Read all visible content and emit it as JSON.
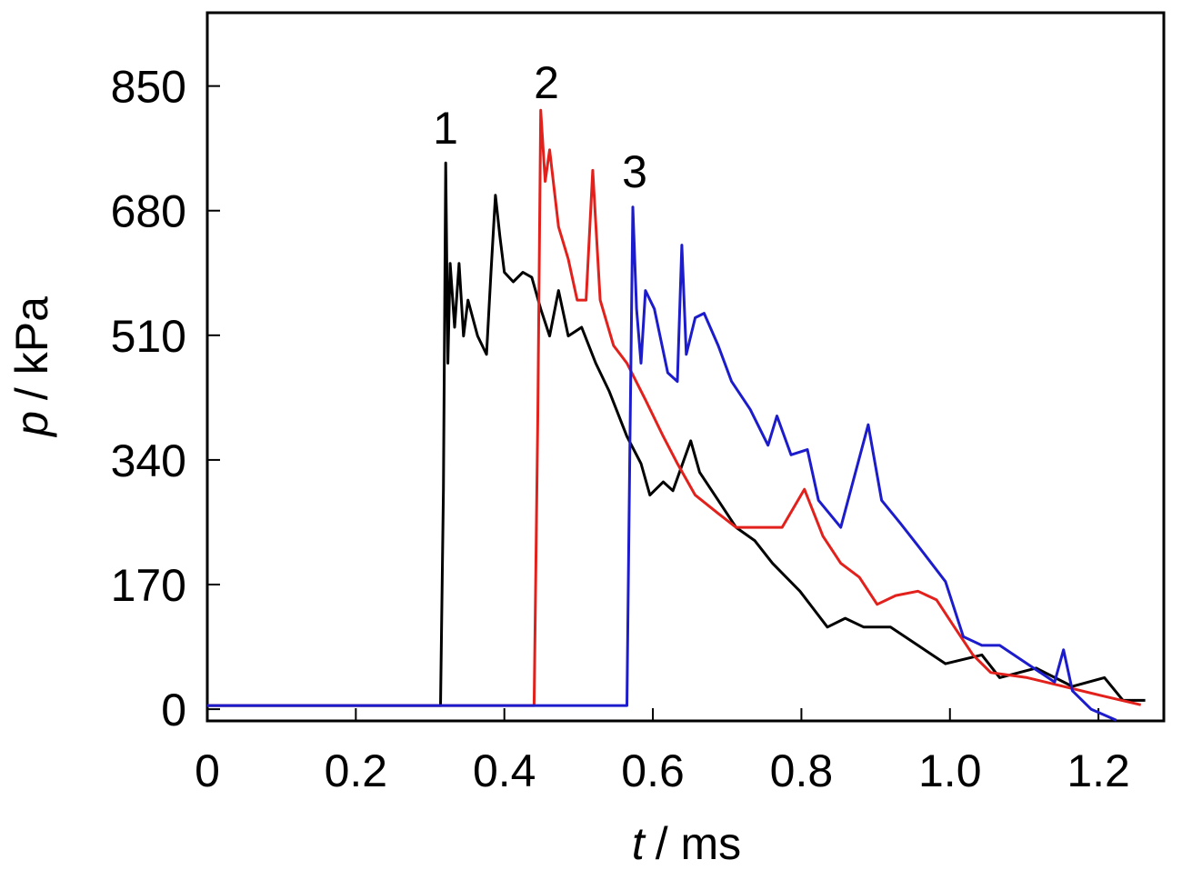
{
  "chart_data": {
    "type": "line",
    "x_label": {
      "symbol": "t",
      "unit": "/ ms"
    },
    "y_label": {
      "symbol": "p",
      "unit": "/ kPa"
    },
    "xlim": [
      0,
      1.288
    ],
    "ylim": [
      -16,
      950
    ],
    "xticks": [
      0,
      0.2,
      0.4,
      0.6,
      0.8,
      {
        "value": 1,
        "label": "1.0"
      },
      1.2
    ],
    "yticks": [
      0,
      170,
      340,
      510,
      680,
      850
    ],
    "series": [
      {
        "name": "1",
        "color": "#000000",
        "x": [
          0,
          0.1,
          0.2,
          0.314,
          0.318,
          0.321,
          0.324,
          0.327,
          0.333,
          0.339,
          0.345,
          0.351,
          0.364,
          0.376,
          0.382,
          0.388,
          0.394,
          0.4,
          0.412,
          0.425,
          0.437,
          0.449,
          0.461,
          0.473,
          0.486,
          0.504,
          0.523,
          0.541,
          0.565,
          0.584,
          0.596,
          0.614,
          0.627,
          0.651,
          0.663,
          0.688,
          0.712,
          0.737,
          0.761,
          0.798,
          0.835,
          0.859,
          0.884,
          0.92,
          0.957,
          0.994,
          1.043,
          1.067,
          1.116,
          1.165,
          1.208,
          1.233,
          1.263
        ],
        "values": [
          5,
          5,
          5,
          5,
          300,
          745,
          472,
          608,
          521,
          608,
          509,
          558,
          509,
          484,
          596,
          701,
          645,
          596,
          583,
          596,
          589,
          546,
          509,
          571,
          509,
          521,
          472,
          434,
          372,
          335,
          292,
          310,
          298,
          366,
          323,
          285,
          248,
          230,
          199,
          161,
          112,
          124,
          112,
          112,
          87,
          62,
          74,
          43,
          56,
          31,
          43,
          12,
          12
        ]
      },
      {
        "name": "2",
        "color": "#e3211c",
        "x": [
          0,
          0.2,
          0.44,
          0.445,
          0.449,
          0.455,
          0.461,
          0.473,
          0.486,
          0.498,
          0.51,
          0.519,
          0.529,
          0.547,
          0.565,
          0.59,
          0.614,
          0.633,
          0.657,
          0.688,
          0.712,
          0.749,
          0.774,
          0.804,
          0.829,
          0.853,
          0.878,
          0.902,
          0.927,
          0.957,
          0.982,
          1.006,
          1.031,
          1.055,
          1.104,
          1.153,
          1.202,
          1.257
        ],
        "values": [
          5,
          5,
          5,
          400,
          817,
          720,
          763,
          658,
          614,
          558,
          558,
          735,
          558,
          496,
          472,
          422,
          372,
          335,
          292,
          267,
          248,
          248,
          248,
          300,
          236,
          199,
          180,
          143,
          155,
          161,
          149,
          112,
          74,
          50,
          43,
          31,
          19,
          6
        ]
      },
      {
        "name": "3",
        "color": "#1c1ccc",
        "x": [
          0,
          0.3,
          0.565,
          0.569,
          0.573,
          0.578,
          0.584,
          0.59,
          0.602,
          0.62,
          0.633,
          0.639,
          0.645,
          0.657,
          0.669,
          0.688,
          0.706,
          0.731,
          0.755,
          0.767,
          0.786,
          0.808,
          0.823,
          0.853,
          0.89,
          0.908,
          0.933,
          0.957,
          0.994,
          1.018,
          1.043,
          1.067,
          1.104,
          1.141,
          1.153,
          1.165,
          1.19,
          1.224
        ],
        "values": [
          5,
          5,
          5,
          350,
          685,
          546,
          472,
          571,
          546,
          459,
          447,
          633,
          484,
          534,
          540,
          496,
          447,
          409,
          360,
          400,
          347,
          354,
          285,
          248,
          388,
          285,
          254,
          223,
          174,
          99,
          87,
          87,
          62,
          37,
          81,
          25,
          0,
          -15
        ]
      }
    ]
  }
}
